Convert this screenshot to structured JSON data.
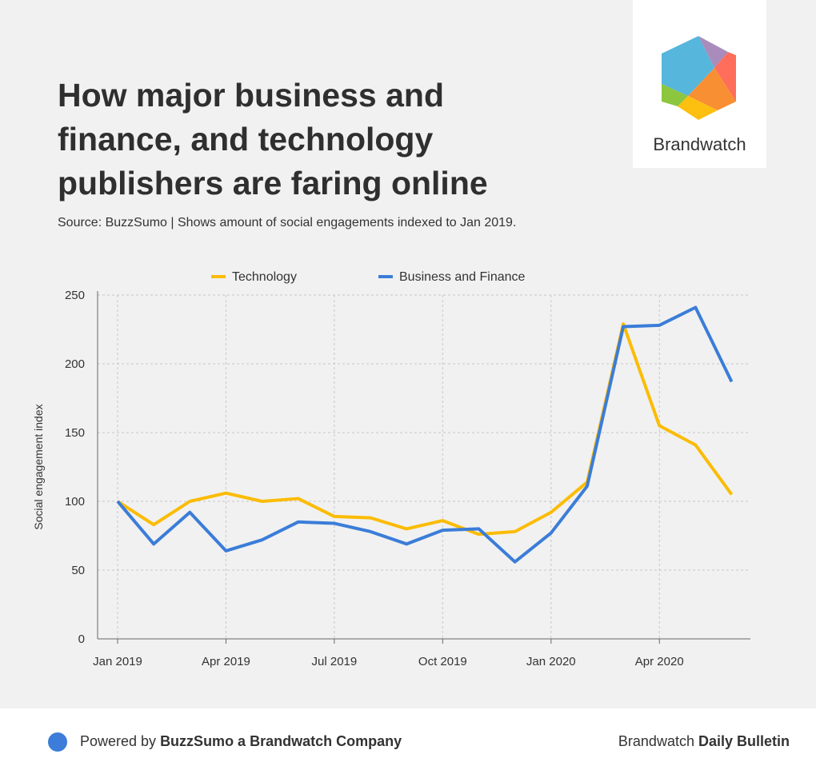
{
  "title": "How major business and finance, and technology publishers are faring online",
  "source": "Source: BuzzSumo | Shows amount of social engagements indexed to Jan 2019.",
  "logo": {
    "text": "Brandwatch"
  },
  "footer": {
    "powered_prefix": "Powered by ",
    "powered_bold": "BuzzSumo a Brandwatch Company",
    "bulletin_prefix": "Brandwatch ",
    "bulletin_bold": "Daily Bulletin",
    "dot_color": "#3b7dd8"
  },
  "chart_data": {
    "type": "line",
    "title": "",
    "xlabel": "",
    "ylabel": "Social engagement index",
    "ylim": [
      0,
      250
    ],
    "yticks": [
      0,
      50,
      100,
      150,
      200,
      250
    ],
    "x": [
      "Jan 2019",
      "Feb 2019",
      "Mar 2019",
      "Apr 2019",
      "May 2019",
      "Jun 2019",
      "Jul 2019",
      "Aug 2019",
      "Sep 2019",
      "Oct 2019",
      "Nov 2019",
      "Dec 2019",
      "Jan 2020",
      "Feb 2020",
      "Mar 2020",
      "Apr 2020",
      "May 2020",
      "Jun 2020"
    ],
    "xtick_labels": [
      "Jan 2019",
      "Apr 2019",
      "Jul 2019",
      "Oct 2019",
      "Jan 2020",
      "Apr 2020"
    ],
    "xtick_index": [
      0,
      3,
      6,
      9,
      12,
      15
    ],
    "grid": true,
    "legend_position": "top-center",
    "series": [
      {
        "name": "Technology",
        "color": "#fbbc05",
        "values": [
          100,
          83,
          100,
          106,
          100,
          102,
          89,
          88,
          80,
          86,
          76,
          78,
          92,
          114,
          229,
          155,
          141,
          105
        ]
      },
      {
        "name": "Business and Finance",
        "color": "#3b7dd8",
        "values": [
          100,
          69,
          92,
          64,
          72,
          85,
          84,
          78,
          69,
          79,
          80,
          56,
          77,
          111,
          227,
          228,
          241,
          187
        ]
      }
    ]
  }
}
